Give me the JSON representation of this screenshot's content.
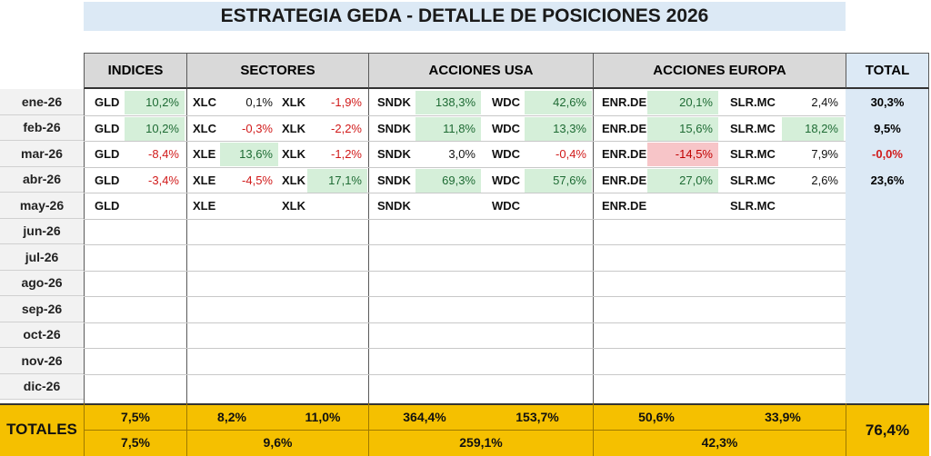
{
  "title": "ESTRATEGIA GEDA  -  DETALLE DE POSICIONES 2026",
  "headers": [
    "INDICES",
    "SECTORES",
    "ACCIONES USA",
    "ACCIONES EUROPA",
    "TOTAL"
  ],
  "months": [
    "ene-26",
    "feb-26",
    "mar-26",
    "abr-26",
    "may-26",
    "jun-26",
    "jul-26",
    "ago-26",
    "sep-26",
    "oct-26",
    "nov-26",
    "dic-26"
  ],
  "rows": [
    {
      "gld": "GLD",
      "gld_v": "10,2%",
      "s1": "XLC",
      "s1_v": "0,1%",
      "s2": "XLK",
      "s2_v": "-1,9%",
      "u1": "SNDK",
      "u1_v": "138,3%",
      "u2": "WDC",
      "u2_v": "42,6%",
      "e1": "ENR.DE",
      "e1_v": "20,1%",
      "e2": "SLR.MC",
      "e2_v": "2,4%",
      "total": "30,3%"
    },
    {
      "gld": "GLD",
      "gld_v": "10,2%",
      "s1": "XLC",
      "s1_v": "-0,3%",
      "s2": "XLK",
      "s2_v": "-2,2%",
      "u1": "SNDK",
      "u1_v": "11,8%",
      "u2": "WDC",
      "u2_v": "13,3%",
      "e1": "ENR.DE",
      "e1_v": "15,6%",
      "e2": "SLR.MC",
      "e2_v": "18,2%",
      "total": "9,5%"
    },
    {
      "gld": "GLD",
      "gld_v": "-8,4%",
      "s1": "XLE",
      "s1_v": "13,6%",
      "s2": "XLK",
      "s2_v": "-1,2%",
      "u1": "SNDK",
      "u1_v": "3,0%",
      "u2": "WDC",
      "u2_v": "-0,4%",
      "e1": "ENR.DE",
      "e1_v": "-14,5%",
      "e2": "SLR.MC",
      "e2_v": "7,9%",
      "total": "-0,0%"
    },
    {
      "gld": "GLD",
      "gld_v": "-3,4%",
      "s1": "XLE",
      "s1_v": "-4,5%",
      "s2": "XLK",
      "s2_v": "17,1%",
      "u1": "SNDK",
      "u1_v": "69,3%",
      "u2": "WDC",
      "u2_v": "57,6%",
      "e1": "ENR.DE",
      "e1_v": "27,0%",
      "e2": "SLR.MC",
      "e2_v": "2,6%",
      "total": "23,6%"
    },
    {
      "gld": "GLD",
      "gld_v": "",
      "s1": "XLE",
      "s1_v": "",
      "s2": "XLK",
      "s2_v": "",
      "u1": "SNDK",
      "u1_v": "",
      "u2": "WDC",
      "u2_v": "",
      "e1": "ENR.DE",
      "e1_v": "",
      "e2": "SLR.MC",
      "e2_v": "",
      "total": ""
    }
  ],
  "totals": {
    "label": "TOTALES",
    "row1": {
      "indices": "7,5%",
      "sect1": "8,2%",
      "sect2": "11,0%",
      "usa1": "364,4%",
      "usa2": "153,7%",
      "eur1": "50,6%",
      "eur2": "33,9%"
    },
    "row2": {
      "indices": "7,5%",
      "sectores": "9,6%",
      "usa": "259,1%",
      "europa": "42,3%"
    },
    "total": "76,4%"
  },
  "colors": {
    "positive_bg": "#d5efd9",
    "negative_text": "#d11a1a",
    "highlight_neg_bg": "#f7c5c8",
    "totals_bg": "#f5c000",
    "total_col_bg": "#dce9f5"
  }
}
